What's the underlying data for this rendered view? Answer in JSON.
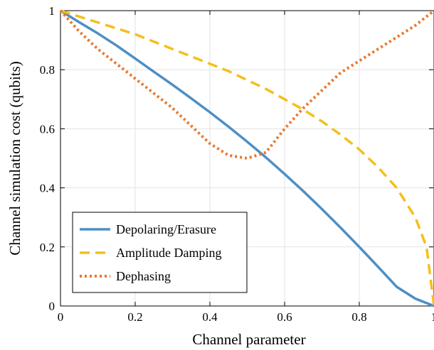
{
  "chart_data": {
    "type": "line",
    "title": "",
    "xlabel": "Channel parameter",
    "ylabel": "Channel simulation cost (qubits)",
    "xlim": [
      0,
      1
    ],
    "ylim": [
      0,
      1
    ],
    "xticks": [
      0,
      0.2,
      0.4,
      0.6,
      0.8,
      1
    ],
    "yticks": [
      0,
      0.2,
      0.4,
      0.6,
      0.8,
      1
    ],
    "xtick_labels": [
      "0",
      "0.2",
      "0.4",
      "0.6",
      "0.8",
      "1"
    ],
    "ytick_labels": [
      "0",
      "0.2",
      "0.4",
      "0.6",
      "0.8",
      "1"
    ],
    "grid": true,
    "legend_position": "bottom-left",
    "series": [
      {
        "name": "Depolaring/Erasure",
        "color": "#4d8fc4",
        "style": "solid",
        "x": [
          0,
          0.05,
          0.1,
          0.15,
          0.2,
          0.25,
          0.3,
          0.35,
          0.4,
          0.45,
          0.5,
          0.55,
          0.6,
          0.65,
          0.7,
          0.75,
          0.8,
          0.85,
          0.9,
          0.95,
          1
        ],
        "y": [
          1,
          0.961,
          0.923,
          0.882,
          0.838,
          0.793,
          0.749,
          0.703,
          0.656,
          0.607,
          0.556,
          0.503,
          0.447,
          0.389,
          0.328,
          0.265,
          0.2,
          0.133,
          0.065,
          0.025,
          0.0
        ]
      },
      {
        "name": "Amplitude Damping",
        "color": "#f4bf1c",
        "style": "dashed",
        "x": [
          0,
          0.05,
          0.1,
          0.15,
          0.2,
          0.25,
          0.3,
          0.35,
          0.4,
          0.45,
          0.5,
          0.55,
          0.6,
          0.65,
          0.7,
          0.75,
          0.8,
          0.85,
          0.9,
          0.95,
          0.98,
          1
        ],
        "y": [
          1,
          0.98,
          0.96,
          0.94,
          0.92,
          0.895,
          0.87,
          0.845,
          0.82,
          0.795,
          0.765,
          0.735,
          0.7,
          0.665,
          0.625,
          0.58,
          0.53,
          0.47,
          0.4,
          0.3,
          0.2,
          0.0
        ]
      },
      {
        "name": "Dephasing",
        "color": "#e8782f",
        "style": "dotted",
        "x": [
          0,
          0.05,
          0.1,
          0.15,
          0.2,
          0.25,
          0.3,
          0.35,
          0.4,
          0.45,
          0.5,
          0.55,
          0.6,
          0.65,
          0.7,
          0.75,
          0.8,
          0.85,
          0.9,
          0.95,
          1
        ],
        "y": [
          1,
          0.93,
          0.87,
          0.82,
          0.77,
          0.72,
          0.67,
          0.61,
          0.55,
          0.51,
          0.5,
          0.52,
          0.6,
          0.67,
          0.73,
          0.79,
          0.83,
          0.87,
          0.91,
          0.95,
          1
        ]
      }
    ]
  }
}
